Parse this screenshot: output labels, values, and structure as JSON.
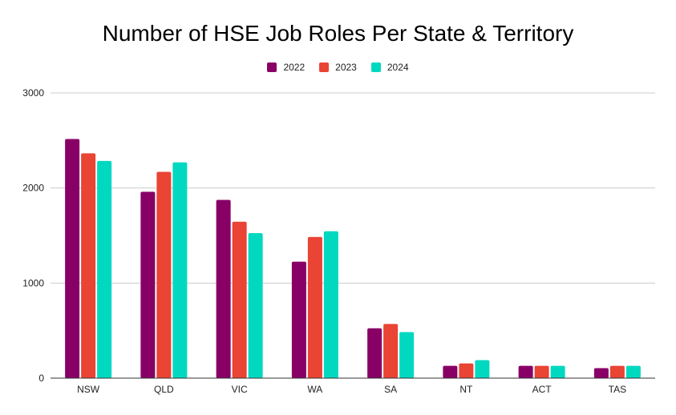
{
  "chart_data": {
    "type": "bar",
    "title": "Number of HSE Job Roles Per State & Territory",
    "categories": [
      "NSW",
      "QLD",
      "VIC",
      "WA",
      "SA",
      "NT",
      "ACT",
      "TAS"
    ],
    "series": [
      {
        "name": "2022",
        "color": "#880066",
        "values": [
          2515,
          1960,
          1875,
          1225,
          525,
          130,
          130,
          105
        ]
      },
      {
        "name": "2023",
        "color": "#e94434",
        "values": [
          2365,
          2170,
          1645,
          1485,
          570,
          155,
          130,
          130
        ]
      },
      {
        "name": "2024",
        "color": "#00d8c0",
        "values": [
          2285,
          2270,
          1525,
          1545,
          485,
          190,
          130,
          130
        ]
      }
    ],
    "ylim": [
      0,
      3000
    ],
    "yticks": [
      "0",
      "1000",
      "2000",
      "3000"
    ],
    "grid": true,
    "legend_position": "top-center"
  }
}
